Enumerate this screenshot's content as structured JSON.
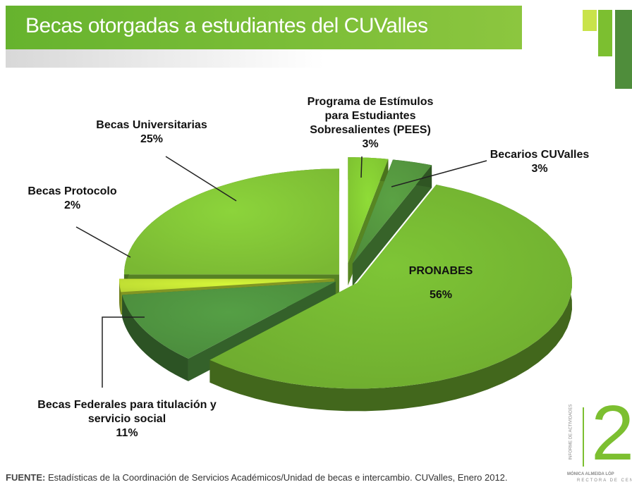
{
  "chart_data": {
    "type": "pie",
    "title": "Becas otorgadas a estudiantes del CUValles",
    "categories": [
      "Programa de Estímulos para Estudiantes Sobresalientes (PEES)",
      "Becarios CUValles",
      "PRONABES",
      "Becas Federales para titulación y servicio social",
      "Becas Protocolo",
      "Becas Universitarias"
    ],
    "values": [
      3,
      3,
      56,
      11,
      2,
      25
    ],
    "value_labels": [
      "3%",
      "3%",
      "56%",
      "11%",
      "2%",
      "25%"
    ],
    "colors": [
      "#7cbf30",
      "#4f8d3b",
      "#6eab2f",
      "#4a8a3c",
      "#b9d632",
      "#7ab833"
    ]
  },
  "source_label": "FUENTE:",
  "source": "Estadísticas de la Coordinación de Servicios Académicos/Unidad de becas e intercambio. CUValles, Enero 2012.",
  "logo": {
    "number": "2",
    "tagline": "INFORME DE ACTIVIDADES",
    "name": "MÓNICA ALMEIDA LÓP",
    "role": "RECTORA DE CEN"
  }
}
